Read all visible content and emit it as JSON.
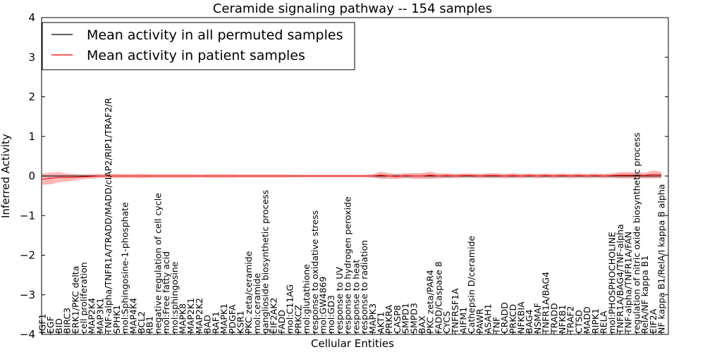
{
  "chart_data": {
    "type": "line",
    "title": "Ceramide signaling pathway -- 154 samples",
    "xlabel": "Cellular Entities",
    "ylabel": "Inferred Activity",
    "ylim": [
      -4,
      4
    ],
    "yticks": [
      "4",
      "3",
      "2",
      "1",
      "0",
      "−1",
      "−2",
      "−3",
      "−4"
    ],
    "legend": {
      "placement": "top-left",
      "entries": [
        {
          "label": "Mean activity in all permuted samples",
          "color": "#000000"
        },
        {
          "label": "Mean activity in patient samples",
          "color": "#ff0000"
        }
      ]
    },
    "categories": [
      "IGF1",
      "EGF",
      "BID",
      "BIRC3",
      "ERK1/PKC delta",
      "cell proliferation",
      "MAP2K4",
      "MAP3K1",
      "TNF-alpha/TNFR1A/TRADD/MADD/cIAP2/RIP1/TRAF2/R",
      "SPHK1",
      "mol:Sphingosine-1-phosphate",
      "MAP4K4",
      "BCL2",
      "RB1",
      "negative regulation of cell cycle",
      "mol:Free fatty acid",
      "mol:sphingosine",
      "MAPK8",
      "MAP2K1",
      "MAP2K2",
      "BAD",
      "RAF1",
      "MAPK1",
      "PDGFA",
      "KSR1",
      "PKC zeta/ceramide",
      "mol:ceramide",
      "ganglioside biosynthetic process",
      "EIF2AK2",
      "FADD",
      "mol:C11AG",
      "PRKCZ",
      "mol:glutathione",
      "response to oxidative stress",
      "mol:GW4869",
      "mol:GD3",
      "response to UV",
      "response to hydrogen peroxide",
      "response to heat",
      "response to radiation",
      "MAPK3",
      "AKT1",
      "PRKRA",
      "CASP8",
      "SMPD1",
      "SMPD3",
      "BAX",
      "PKC zeta/PAR4",
      "FADD/Caspase 8",
      "CYCS",
      "TNFRSF1A",
      "AIFM1",
      "Cathepsin D/ceramide",
      "PAWR",
      "ASAH1",
      "TNF",
      "CRADD",
      "PRKCD",
      "NFKBIA",
      "BAG4",
      "NSMAF",
      "TNFR1A/BAG4",
      "TRADD",
      "NFKB1",
      "TRAF2",
      "CTSD",
      "MADD",
      "RIPK1",
      "RELA",
      "mol:PHOSPHOCHOLINE",
      "TNFR1A/BAG4/TNF-alpha",
      "TNF-alpha/TNFR1A/FAN",
      "regulation of nitric oxide biosynthetic process",
      "RelA/NF kappa B1",
      "EIF2A",
      "NF kappa B1/RelA/I kappa B alpha"
    ],
    "series": [
      {
        "name": "Mean activity in all permuted samples",
        "values": [
          0,
          0,
          0,
          0,
          0,
          0,
          0,
          0,
          0,
          0,
          0,
          0,
          0,
          0,
          0,
          0,
          0,
          0,
          0,
          0,
          0,
          0,
          0,
          0,
          0,
          0,
          0,
          0,
          0,
          0,
          0,
          0,
          0,
          0,
          0,
          0,
          0,
          0,
          0,
          0,
          0,
          0,
          0,
          0,
          0,
          0,
          0,
          0,
          0,
          0,
          0,
          0,
          0,
          0,
          0,
          0,
          0,
          0,
          0,
          0,
          0,
          0,
          0,
          0,
          0,
          0,
          0,
          0,
          0,
          0,
          0,
          0,
          0,
          0,
          0,
          0
        ],
        "band": [
          0.03,
          0.03,
          0.03,
          0.03,
          0.03,
          0.03,
          0.03,
          0.03,
          0.03,
          0.03,
          0.03,
          0.03,
          0.03,
          0.03,
          0.03,
          0.03,
          0.03,
          0.03,
          0.03,
          0.03,
          0.03,
          0.03,
          0.03,
          0.03,
          0.03,
          0.03,
          0.03,
          0.03,
          0.03,
          0.03,
          0.03,
          0.03,
          0.03,
          0.03,
          0.03,
          0.03,
          0.03,
          0.03,
          0.03,
          0.03,
          0.05,
          0.06,
          0.06,
          0.06,
          0.06,
          0.06,
          0.06,
          0.06,
          0.06,
          0.06,
          0.06,
          0.06,
          0.06,
          0.06,
          0.06,
          0.06,
          0.06,
          0.06,
          0.06,
          0.06,
          0.06,
          0.06,
          0.06,
          0.06,
          0.06,
          0.06,
          0.06,
          0.06,
          0.06,
          0.06,
          0.06,
          0.06,
          0.06,
          0.06,
          0.06,
          0.06
        ]
      },
      {
        "name": "Mean activity in patient samples",
        "values": [
          -0.08,
          -0.06,
          -0.03,
          -0.04,
          -0.03,
          -0.02,
          -0.01,
          0,
          0,
          0,
          0,
          0,
          0,
          0,
          0,
          0,
          0,
          0,
          0,
          0,
          0,
          0,
          0,
          0,
          0,
          0,
          0,
          0,
          0,
          0,
          0,
          0,
          0,
          0,
          0,
          0,
          0,
          0,
          0,
          0,
          0,
          0.02,
          0,
          -0.01,
          0.01,
          0,
          0,
          0.02,
          0,
          0.01,
          0,
          0.01,
          0.01,
          0,
          0.01,
          0.01,
          0,
          0.01,
          0,
          0.01,
          0,
          0.01,
          0,
          0.01,
          0,
          0.01,
          0,
          0.01,
          0,
          0.01,
          0.02,
          0.02,
          0.02,
          0.01,
          0.04,
          0.03
        ],
        "band": [
          0.14,
          0.15,
          0.13,
          0.1,
          0.08,
          0.06,
          0.06,
          0.05,
          0.05,
          0.06,
          0.05,
          0.05,
          0.06,
          0.05,
          0.05,
          0.05,
          0.05,
          0.05,
          0.05,
          0.04,
          0.05,
          0.05,
          0.05,
          0.05,
          0.04,
          0.04,
          0.04,
          0.04,
          0.04,
          0.04,
          0.04,
          0.03,
          0.03,
          0.03,
          0.03,
          0.03,
          0.03,
          0.03,
          0.03,
          0.03,
          0.04,
          0.09,
          0.07,
          0.06,
          0.06,
          0.07,
          0.07,
          0.09,
          0.06,
          0.06,
          0.05,
          0.05,
          0.05,
          0.05,
          0.06,
          0.06,
          0.05,
          0.06,
          0.05,
          0.05,
          0.05,
          0.05,
          0.05,
          0.05,
          0.05,
          0.05,
          0.05,
          0.05,
          0.05,
          0.05,
          0.08,
          0.08,
          0.07,
          0.07,
          0.1,
          0.08
        ]
      }
    ]
  }
}
